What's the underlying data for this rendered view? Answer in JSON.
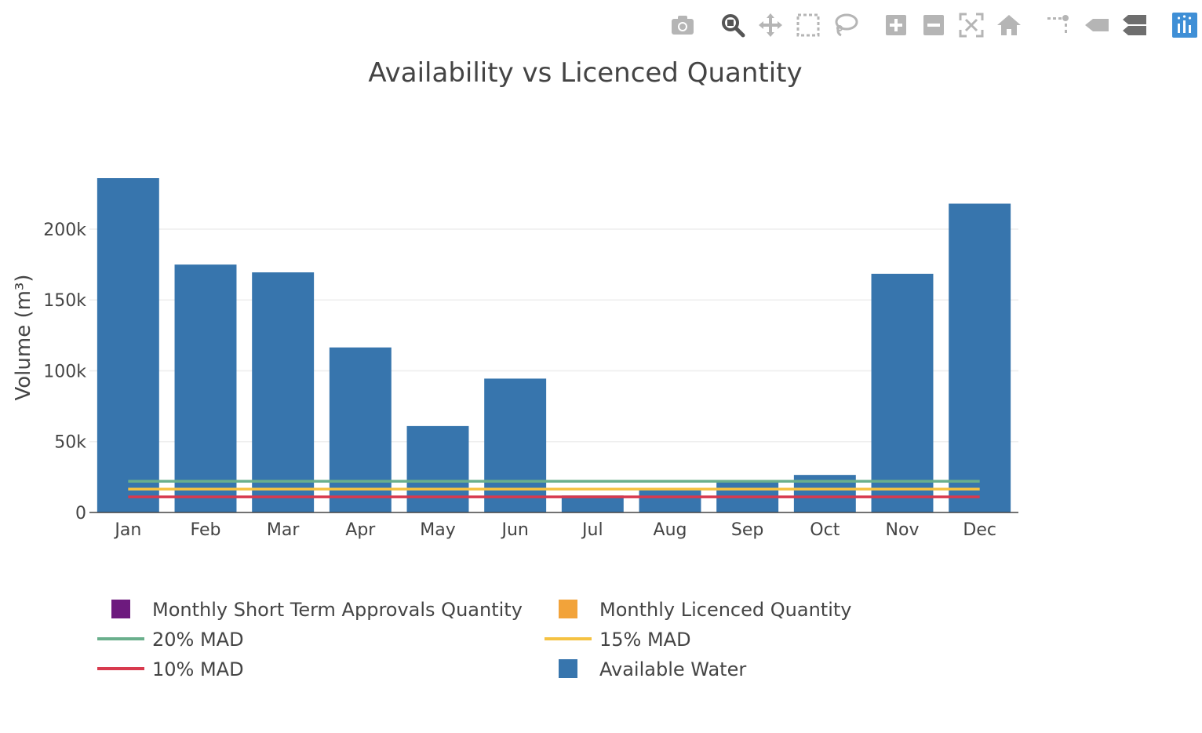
{
  "toolbar": {
    "buttons": [
      {
        "icon": "camera-icon",
        "label": "Download plot as a png"
      },
      {
        "icon": "zoom-icon",
        "label": "Zoom"
      },
      {
        "icon": "pan-icon",
        "label": "Pan"
      },
      {
        "icon": "box-select-icon",
        "label": "Box Select"
      },
      {
        "icon": "lasso-select-icon",
        "label": "Lasso Select"
      },
      {
        "icon": "zoom-in-icon",
        "label": "Zoom in"
      },
      {
        "icon": "zoom-out-icon",
        "label": "Zoom out"
      },
      {
        "icon": "autoscale-icon",
        "label": "Autoscale"
      },
      {
        "icon": "reset-axes-icon",
        "label": "Reset axes"
      },
      {
        "icon": "spike-lines-icon",
        "label": "Toggle Spike Lines"
      },
      {
        "icon": "hover-closest-icon",
        "label": "Show closest data on hover"
      },
      {
        "icon": "hover-compare-icon",
        "label": "Compare data on hover"
      },
      {
        "icon": "plotly-logo-icon",
        "label": "Produced with Plotly"
      }
    ]
  },
  "chart_data": {
    "type": "bar",
    "title": "Availability vs Licenced Quantity",
    "xlabel": "",
    "ylabel": "Volume (m³)",
    "ylim": [
      0,
      236000
    ],
    "yticks": [
      0,
      50000,
      100000,
      150000,
      200000
    ],
    "ytick_labels": [
      "0",
      "50k",
      "100k",
      "150k",
      "200k"
    ],
    "grid": true,
    "legend_position": "bottom",
    "categories": [
      "Jan",
      "Feb",
      "Mar",
      "Apr",
      "May",
      "Jun",
      "Jul",
      "Aug",
      "Sep",
      "Oct",
      "Nov",
      "Dec"
    ],
    "series": [
      {
        "name": "Monthly Short Term Approvals Quantity",
        "type": "bar",
        "color": "#6d1a7e",
        "values": [
          0,
          0,
          0,
          0,
          0,
          0,
          0,
          0,
          0,
          0,
          0,
          0
        ]
      },
      {
        "name": "Monthly Licenced Quantity",
        "type": "bar",
        "color": "#f2a33a",
        "values": [
          0,
          0,
          0,
          0,
          0,
          0,
          0,
          0,
          0,
          0,
          0,
          0
        ]
      },
      {
        "name": "20% MAD",
        "type": "line",
        "color": "#6aaf8c",
        "values": [
          22000,
          22000,
          22000,
          22000,
          22000,
          22000,
          22000,
          22000,
          22000,
          22000,
          22000,
          22000
        ]
      },
      {
        "name": "15% MAD",
        "type": "line",
        "color": "#f5c242",
        "values": [
          16500,
          16500,
          16500,
          16500,
          16500,
          16500,
          16500,
          16500,
          16500,
          16500,
          16500,
          16500
        ]
      },
      {
        "name": "10% MAD",
        "type": "line",
        "color": "#d83a4e",
        "values": [
          11000,
          11000,
          11000,
          11000,
          11000,
          11000,
          11000,
          11000,
          11000,
          11000,
          11000,
          11000
        ]
      },
      {
        "name": "Available Water",
        "type": "bar",
        "color": "#3775ad",
        "values": [
          236000,
          175000,
          169500,
          116500,
          61000,
          94500,
          12000,
          16000,
          22500,
          26500,
          168500,
          218000
        ]
      }
    ]
  }
}
